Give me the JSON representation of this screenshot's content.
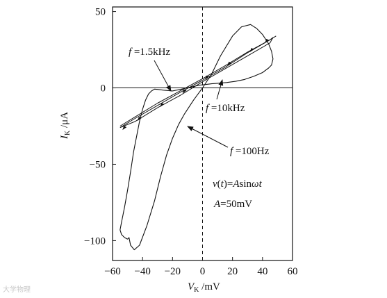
{
  "chart_data": {
    "type": "line",
    "title": "",
    "xlabel": "V_K /mV",
    "ylabel": "I_K /μA",
    "xlim": [
      -60,
      60
    ],
    "ylim": [
      -113,
      53
    ],
    "xticks": [
      -60,
      -40,
      -20,
      0,
      20,
      40,
      60
    ],
    "yticks": [
      50,
      0,
      -50,
      -100
    ],
    "xtick_labels": [
      "−60",
      "−40",
      "−20",
      "0",
      "20",
      "40",
      "60"
    ],
    "ytick_labels": [
      "50",
      "0",
      "−50",
      "−100"
    ],
    "grid": false,
    "legend": "none",
    "series": [
      {
        "name": "f=100Hz",
        "x": [
          -49,
          -48,
          -45.5,
          -42,
          -37,
          -32,
          -28,
          -24,
          -20,
          -16,
          -12,
          -6,
          0,
          6,
          12,
          20,
          26,
          32,
          36,
          40,
          44,
          46,
          47,
          46,
          44,
          40,
          34,
          28,
          22,
          16,
          10,
          6,
          2,
          -2,
          -8,
          -14,
          -20,
          -26,
          -30,
          -32,
          -34,
          -36,
          -38,
          -40,
          -42,
          -44,
          -46,
          -48,
          -50,
          -52,
          -54,
          -55,
          -54,
          -52,
          -50,
          -49
        ],
        "y": [
          -98,
          -103,
          -106,
          -103,
          -90,
          -74,
          -58,
          -44,
          -33,
          -24,
          -17,
          -8,
          0,
          9,
          21,
          34,
          40,
          41.5,
          39,
          35,
          29,
          24,
          19,
          15,
          13,
          10,
          7.5,
          5.5,
          4.3,
          3.5,
          3,
          2.7,
          2.2,
          1.8,
          0.5,
          -0.8,
          -2,
          -1.5,
          -1,
          -0.8,
          -2,
          -4,
          -8,
          -14,
          -22,
          -32,
          -42,
          -55,
          -67,
          -78,
          -88,
          -93,
          -96,
          -98,
          -99,
          -98
        ]
      },
      {
        "name": "f=1.5kHz",
        "x": [
          -55,
          -45,
          -30,
          -15,
          0,
          15,
          30,
          45,
          47,
          45,
          30,
          15,
          0,
          -15,
          -30,
          -45,
          -55
        ],
        "y": [
          -26,
          -20,
          -11.5,
          -3,
          5,
          13.5,
          23,
          31.5,
          33,
          29.5,
          21,
          12.5,
          4,
          -5,
          -13,
          -22,
          -26
        ]
      },
      {
        "name": "f=10kHz",
        "x": [
          -55,
          -45,
          -30,
          -15,
          0,
          15,
          30,
          45,
          49
        ],
        "y": [
          -25,
          -19,
          -10,
          -2,
          6,
          14.5,
          23.5,
          31.5,
          34
        ]
      }
    ],
    "annotations": [
      {
        "text": "f=1.5kHz"
      },
      {
        "text": "f=10kHz"
      },
      {
        "text": "f=100Hz"
      },
      {
        "text": "v(t)=Asinωt"
      },
      {
        "text": "A=50mV"
      }
    ]
  },
  "watermark": "大学物理",
  "colors": {
    "ink": "#111111"
  }
}
